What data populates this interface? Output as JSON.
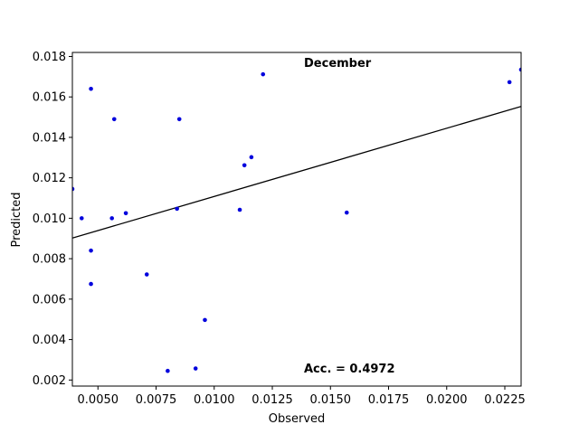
{
  "chart_data": {
    "type": "scatter",
    "title": "",
    "xlabel": "Observed",
    "ylabel": "Predicted",
    "xlim": [
      0.0039,
      0.0232
    ],
    "ylim": [
      0.0017,
      0.0182
    ],
    "x_ticks": [
      "0.0050",
      "0.0075",
      "0.0100",
      "0.0125",
      "0.0150",
      "0.0175",
      "0.0200",
      "0.0225"
    ],
    "x_tick_values": [
      0.005,
      0.0075,
      0.01,
      0.0125,
      0.015,
      0.0175,
      0.02,
      0.0225
    ],
    "y_ticks": [
      "0.002",
      "0.004",
      "0.006",
      "0.008",
      "0.010",
      "0.012",
      "0.014",
      "0.016",
      "0.018"
    ],
    "y_tick_values": [
      0.002,
      0.004,
      0.006,
      0.008,
      0.01,
      0.012,
      0.014,
      0.016,
      0.018
    ],
    "grid": false,
    "point_color": "#0000dd",
    "line_color": "#000000",
    "points": [
      {
        "x": 0.0039,
        "y": 0.01145
      },
      {
        "x": 0.0043,
        "y": 0.01
      },
      {
        "x": 0.0047,
        "y": 0.0164
      },
      {
        "x": 0.0047,
        "y": 0.0084
      },
      {
        "x": 0.0047,
        "y": 0.00675
      },
      {
        "x": 0.0056,
        "y": 0.01
      },
      {
        "x": 0.0057,
        "y": 0.0149
      },
      {
        "x": 0.0062,
        "y": 0.01025
      },
      {
        "x": 0.0071,
        "y": 0.00722
      },
      {
        "x": 0.008,
        "y": 0.00245
      },
      {
        "x": 0.0084,
        "y": 0.01047
      },
      {
        "x": 0.0085,
        "y": 0.0149
      },
      {
        "x": 0.0092,
        "y": 0.00257
      },
      {
        "x": 0.0096,
        "y": 0.00497
      },
      {
        "x": 0.0111,
        "y": 0.01042
      },
      {
        "x": 0.0113,
        "y": 0.01262
      },
      {
        "x": 0.0116,
        "y": 0.01302
      },
      {
        "x": 0.0121,
        "y": 0.01712
      },
      {
        "x": 0.0157,
        "y": 0.01028
      },
      {
        "x": 0.0227,
        "y": 0.01673
      },
      {
        "x": 0.0232,
        "y": 0.01735
      }
    ],
    "fit_line": {
      "x": [
        0.0039,
        0.0232
      ],
      "y": [
        0.00902,
        0.01553
      ]
    },
    "annotations": {
      "month": "December",
      "accuracy": "Acc. = 0.4972"
    }
  }
}
